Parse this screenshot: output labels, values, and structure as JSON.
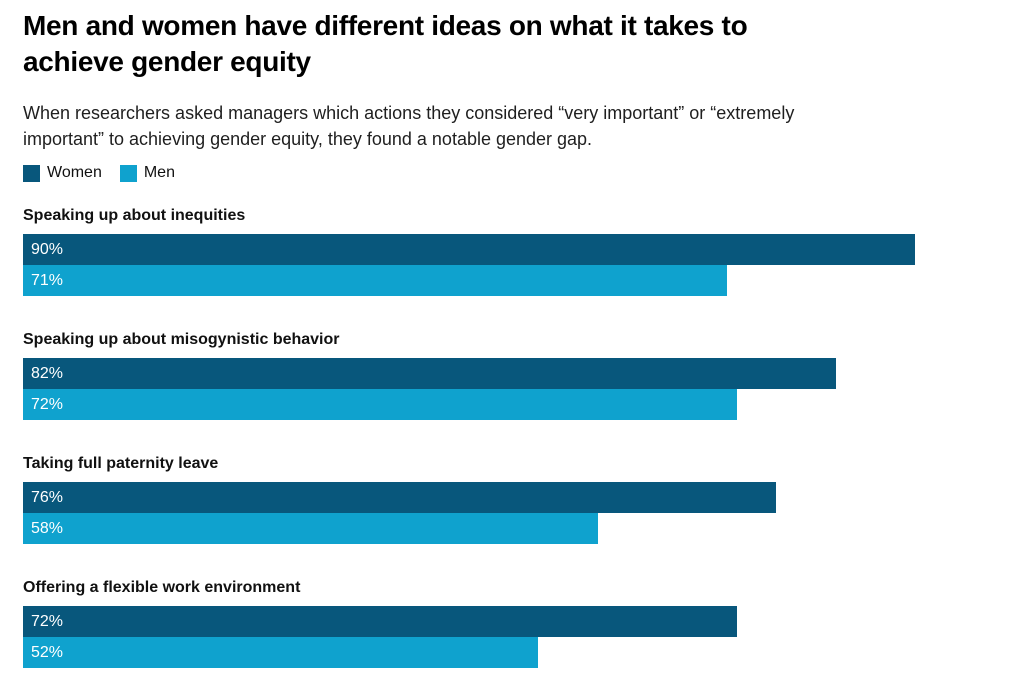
{
  "header": {
    "title_lines": [
      "Men and women have different ideas on what it takes to",
      "achieve gender equity"
    ],
    "subtitle_lines": [
      "When researchers asked managers which actions they considered “very important” or “extremely",
      "important” to achieving gender equity, they found a notable gender gap."
    ]
  },
  "legend": [
    {
      "label": "Women",
      "color": "#08577C"
    },
    {
      "label": "Men",
      "color": "#0FA2CE"
    }
  ],
  "chart_data": {
    "type": "bar",
    "orientation": "horizontal",
    "title": "Men and women have different ideas on what it takes to achieve gender equity",
    "subtitle": "When researchers asked managers which actions they considered “very important” or “extremely important” to achieving gender equity, they found a notable gender gap.",
    "categories": [
      "Speaking up about inequities",
      "Speaking up about misogynistic behavior",
      "Taking full paternity leave",
      "Offering a flexible work environment"
    ],
    "series": [
      {
        "name": "Women",
        "color": "#08577C",
        "values": [
          90,
          82,
          76,
          72
        ]
      },
      {
        "name": "Men",
        "color": "#0FA2CE",
        "values": [
          71,
          72,
          58,
          52
        ]
      }
    ],
    "value_suffix": "%",
    "xlim": [
      0,
      100
    ],
    "grid": false,
    "legend_position": "top",
    "value_labels": "inside-start",
    "value_label_color": "#FFFFFF"
  }
}
